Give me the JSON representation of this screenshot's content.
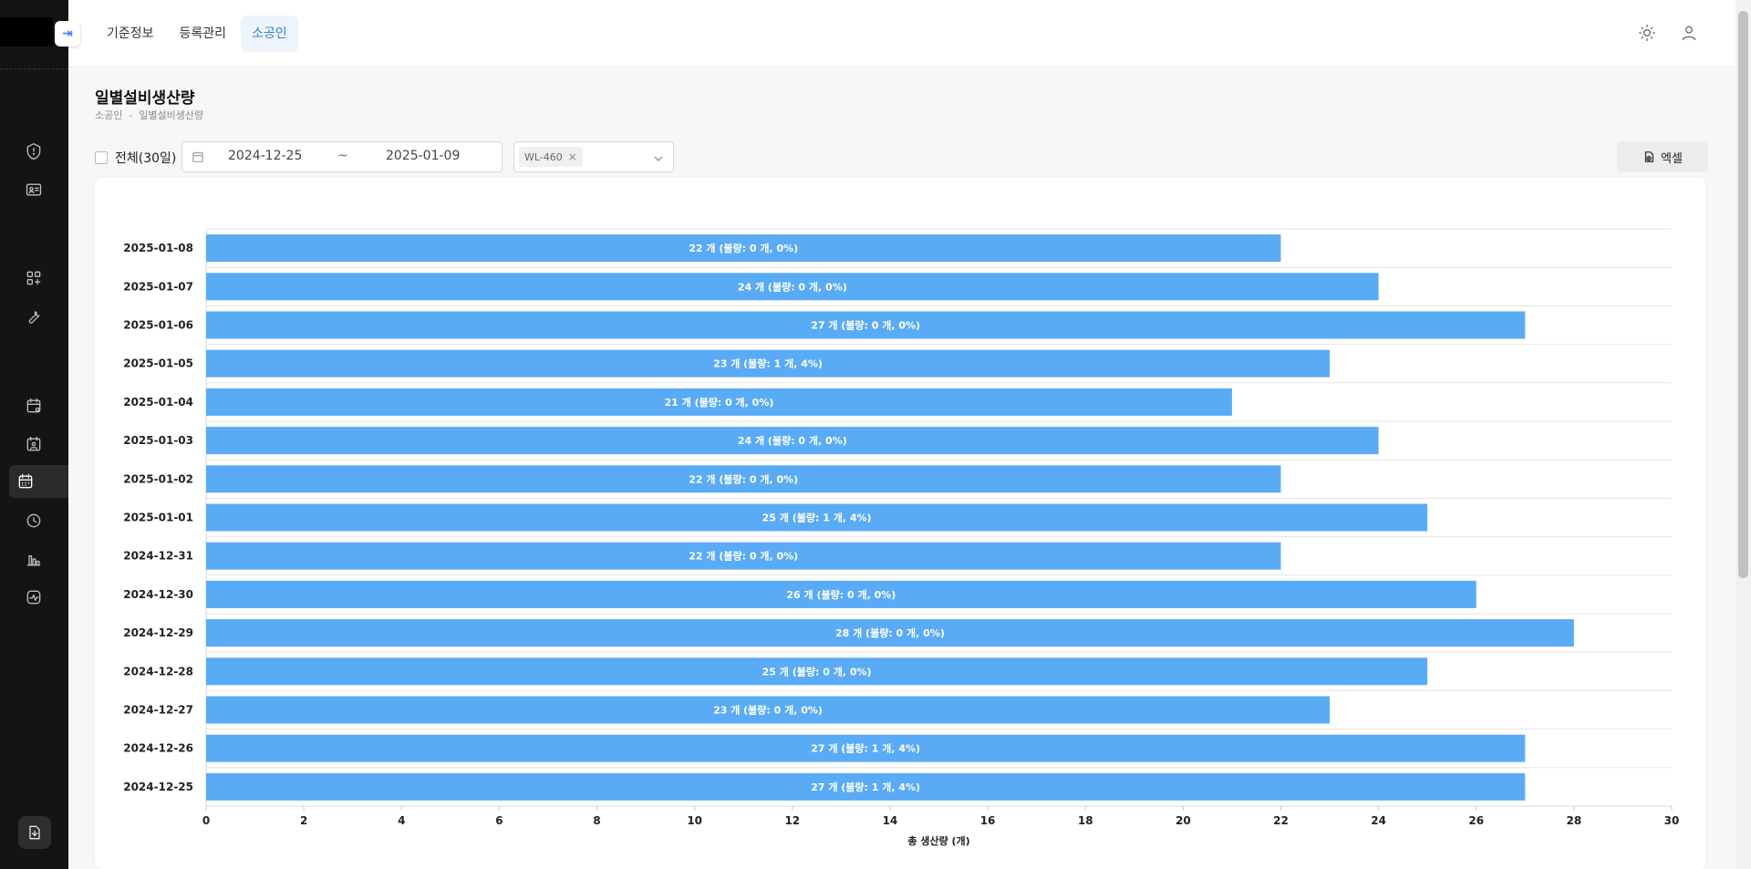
{
  "app": {
    "nav": [
      {
        "label": "기준정보",
        "active": false
      },
      {
        "label": "등록관리",
        "active": false
      },
      {
        "label": "소공인",
        "active": true
      }
    ],
    "icons": {
      "collapse": "collapse-arrow-icon",
      "theme": "sun-icon",
      "user": "user-icon"
    },
    "accent_color": "#2f80d8"
  },
  "sidebar": {
    "items": [
      {
        "icon": "alert-circle-icon",
        "active": false
      },
      {
        "icon": "id-card-icon",
        "active": false
      },
      {
        "icon": "apps-add-icon",
        "active": false
      },
      {
        "icon": "wrench-icon",
        "active": false
      },
      {
        "icon": "calendar-settings-icon",
        "active": false
      },
      {
        "icon": "calendar-user-icon",
        "active": false
      },
      {
        "icon": "calendar-grid-icon",
        "active": true
      },
      {
        "icon": "clock-icon",
        "active": false
      },
      {
        "icon": "bar-chart-icon",
        "active": false
      },
      {
        "icon": "activity-icon",
        "active": false
      }
    ],
    "bottom_icon": "download-icon"
  },
  "page": {
    "title": "일별설비생산량",
    "breadcrumb": "소공인  -  일별설비생산량"
  },
  "filters": {
    "all_checkbox_label": "전체(30일)",
    "all_checked": false,
    "date_start": "2024-12-25",
    "date_separator": "~",
    "date_end": "2025-01-09",
    "equipment_tag": "WL-460",
    "excel_label": "엑셀"
  },
  "chart_data": {
    "type": "bar",
    "orientation": "horizontal",
    "categories": [
      "2025-01-08",
      "2025-01-07",
      "2025-01-06",
      "2025-01-05",
      "2025-01-04",
      "2025-01-03",
      "2025-01-02",
      "2025-01-01",
      "2024-12-31",
      "2024-12-30",
      "2024-12-29",
      "2024-12-28",
      "2024-12-27",
      "2024-12-26",
      "2024-12-25"
    ],
    "values": [
      22,
      24,
      27,
      23,
      21,
      24,
      22,
      25,
      22,
      26,
      28,
      25,
      23,
      27,
      27
    ],
    "data_labels": [
      "22 개 (불량: 0 개, 0%)",
      "24 개 (불량: 0 개, 0%)",
      "27 개 (불량: 0 개, 0%)",
      "23 개 (불량: 1 개, 4%)",
      "21 개 (불량: 0 개, 0%)",
      "24 개 (불량: 0 개, 0%)",
      "22 개 (불량: 0 개, 0%)",
      "25 개 (불량: 1 개, 4%)",
      "22 개 (불량: 0 개, 0%)",
      "26 개 (불량: 0 개, 0%)",
      "28 개 (불량: 0 개, 0%)",
      "25 개 (불량: 0 개, 0%)",
      "23 개 (불량: 0 개, 0%)",
      "27 개 (불량: 1 개, 4%)",
      "27 개 (불량: 1 개, 4%)"
    ],
    "xlabel": "총 생산량 (개)",
    "xlim": [
      0,
      30
    ],
    "xticks": [
      0,
      2,
      4,
      6,
      8,
      10,
      12,
      14,
      16,
      18,
      20,
      22,
      24,
      26,
      28,
      30
    ],
    "bar_color": "#5aabf6",
    "grid": true
  }
}
